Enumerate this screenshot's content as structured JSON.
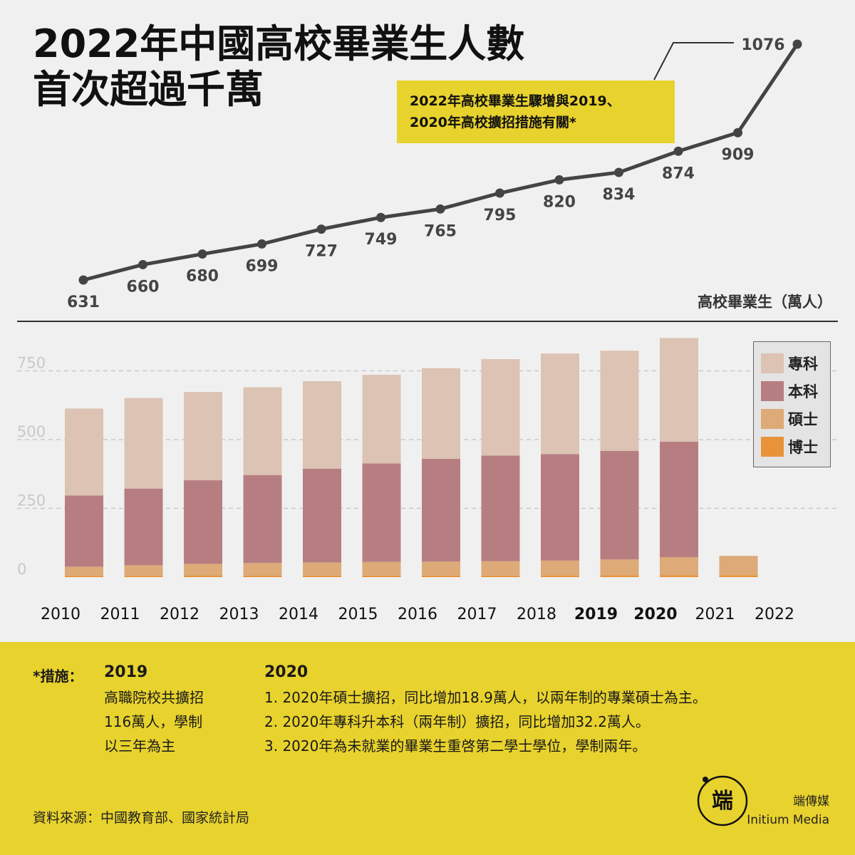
{
  "title": {
    "line1": "2022年中國高校畢業生人數",
    "line2": "首次超過千萬"
  },
  "note": {
    "line1": "2022年高校畢業生驟增與2019、",
    "line2": "2020年高校擴招措施有關*"
  },
  "chart_data": [
    {
      "type": "line",
      "unit_label": "高校畢業生（萬人）",
      "x": [
        "2010",
        "2011",
        "2012",
        "2013",
        "2014",
        "2015",
        "2016",
        "2017",
        "2018",
        "2019",
        "2020",
        "2021",
        "2022"
      ],
      "values": [
        631,
        660,
        680,
        699,
        727,
        749,
        765,
        795,
        820,
        834,
        874,
        909,
        1076
      ],
      "data_labels": [
        "631",
        "660",
        "680",
        "699",
        "727",
        "749",
        "765",
        "795",
        "820",
        "834",
        "874",
        "909",
        "1076"
      ],
      "color": "#444444"
    },
    {
      "type": "bar",
      "stacked": true,
      "categories": [
        "2010",
        "2011",
        "2012",
        "2013",
        "2014",
        "2015",
        "2016",
        "2017",
        "2018",
        "2019",
        "2020",
        "2021",
        "2022"
      ],
      "bold_categories": [
        "2019",
        "2020"
      ],
      "yticks": [
        "0",
        "250",
        "500",
        "750"
      ],
      "ytick_values": [
        0,
        250,
        500,
        750
      ],
      "ylim": [
        0,
        900
      ],
      "grid": "dashed",
      "legend_position": "top-right",
      "series": [
        {
          "name": "博士",
          "color": "#e8933a",
          "values": [
            4.9,
            5.0,
            5.2,
            5.3,
            5.4,
            5.5,
            5.5,
            5.8,
            6.1,
            6.3,
            6.6,
            7.2,
            null
          ]
        },
        {
          "name": "碩士",
          "color": "#ddaa78",
          "values": [
            33,
            38,
            43,
            46,
            48,
            50,
            51,
            52,
            54,
            58,
            66,
            70,
            null
          ]
        },
        {
          "name": "本科",
          "color": "#b77e82",
          "values": [
            259,
            279,
            304,
            320,
            341,
            358,
            374,
            384,
            387,
            395,
            420,
            null,
            null
          ]
        },
        {
          "name": "專科",
          "color": "#dcc3b3",
          "values": [
            316,
            329,
            321,
            319,
            318,
            322,
            329,
            351,
            366,
            364,
            377,
            null,
            null
          ]
        }
      ]
    }
  ],
  "footer": {
    "measures_label": "*措施：",
    "y2019": {
      "year": "2019",
      "lines": [
        "高職院校共擴招",
        "116萬人，學制",
        "以三年為主"
      ]
    },
    "y2020": {
      "year": "2020",
      "lines": [
        "1. 2020年碩士擴招，同比增加18.9萬人，以兩年制的專業碩士為主。",
        "2. 2020年專科升本科（兩年制）擴招，同比增加32.2萬人。",
        "3. 2020年為未就業的畢業生重啓第二學士學位，學制兩年。"
      ]
    },
    "source": "資料來源：中國教育部、國家統計局",
    "brand_cn": "端傳媒",
    "brand_en": "Initium Media",
    "logo_text": "端"
  }
}
